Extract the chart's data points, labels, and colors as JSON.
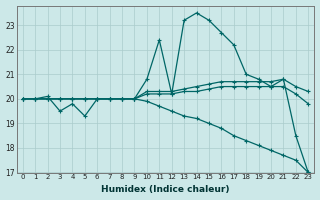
{
  "xlabel": "Humidex (Indice chaleur)",
  "background_color": "#cce8e8",
  "grid_color": "#aacccc",
  "line_color": "#006666",
  "xlim": [
    -0.5,
    23.5
  ],
  "ylim": [
    17,
    23.8
  ],
  "yticks": [
    17,
    18,
    19,
    20,
    21,
    22,
    23
  ],
  "xticks": [
    0,
    1,
    2,
    3,
    4,
    5,
    6,
    7,
    8,
    9,
    10,
    11,
    12,
    13,
    14,
    15,
    16,
    17,
    18,
    19,
    20,
    21,
    22,
    23
  ],
  "hours": [
    0,
    1,
    2,
    3,
    4,
    5,
    6,
    7,
    8,
    9,
    10,
    11,
    12,
    13,
    14,
    15,
    16,
    17,
    18,
    19,
    20,
    21,
    22,
    23
  ],
  "line_max": [
    20.0,
    20.0,
    20.1,
    19.5,
    19.8,
    19.3,
    20.0,
    20.0,
    20.0,
    20.0,
    20.8,
    22.4,
    20.2,
    23.2,
    23.5,
    23.2,
    22.7,
    22.2,
    21.0,
    20.8,
    20.5,
    20.8,
    18.5,
    17.0
  ],
  "line_upper": [
    20.0,
    20.0,
    20.0,
    20.0,
    20.0,
    20.0,
    20.0,
    20.0,
    20.0,
    20.0,
    20.3,
    20.3,
    20.3,
    20.4,
    20.5,
    20.6,
    20.7,
    20.7,
    20.7,
    20.7,
    20.7,
    20.8,
    20.5,
    20.3
  ],
  "line_lower": [
    20.0,
    20.0,
    20.0,
    20.0,
    20.0,
    20.0,
    20.0,
    20.0,
    20.0,
    20.0,
    20.2,
    20.2,
    20.2,
    20.3,
    20.3,
    20.4,
    20.5,
    20.5,
    20.5,
    20.5,
    20.5,
    20.5,
    20.2,
    19.8
  ],
  "line_min": [
    20.0,
    20.0,
    20.0,
    20.0,
    20.0,
    20.0,
    20.0,
    20.0,
    20.0,
    20.0,
    19.9,
    19.7,
    19.5,
    19.3,
    19.2,
    19.0,
    18.8,
    18.5,
    18.3,
    18.1,
    17.9,
    17.7,
    17.5,
    17.0
  ]
}
